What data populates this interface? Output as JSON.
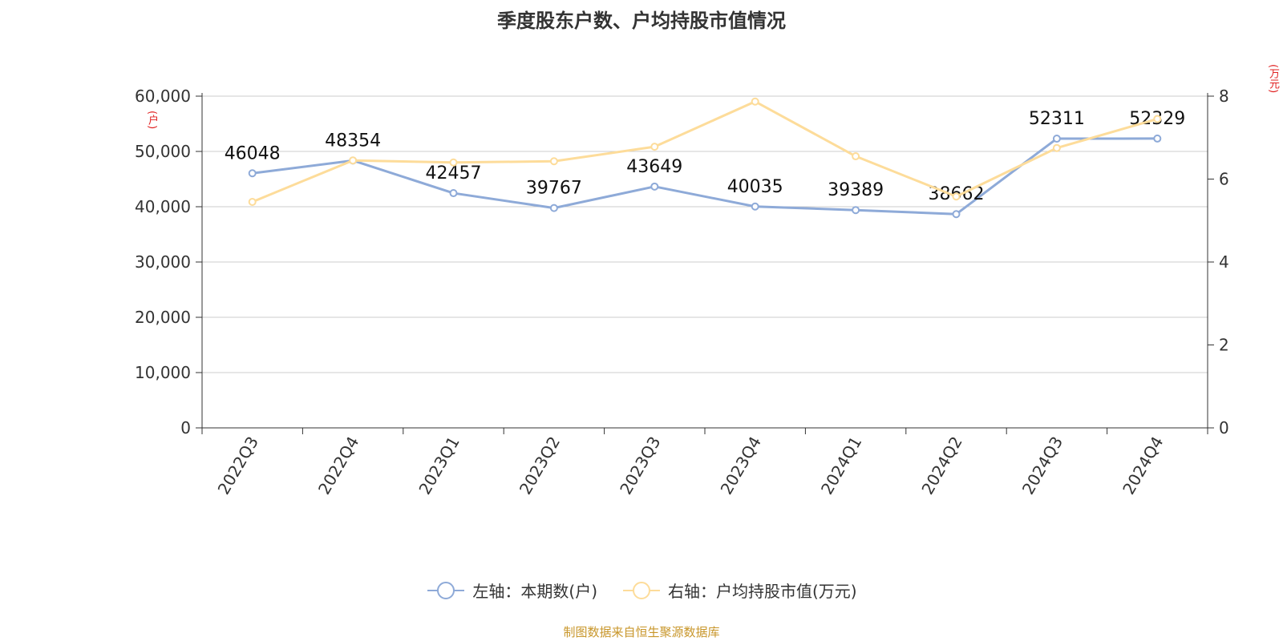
{
  "title": "季度股东户数、户均持股市值情况",
  "source": "制图数据来自恒生聚源数据库",
  "colors": {
    "left_series": "#8eaad8",
    "right_series": "#fddc9a",
    "unit": "#e02020",
    "source": "#c8962a"
  },
  "chart_data": {
    "type": "line",
    "title": "季度股东户数、户均持股市值情况",
    "categories": [
      "2022Q3",
      "2022Q4",
      "2023Q1",
      "2023Q2",
      "2023Q3",
      "2023Q4",
      "2024Q1",
      "2024Q2",
      "2024Q3",
      "2024Q4"
    ],
    "left_axis": {
      "unit": "(户)",
      "ylim": [
        0,
        60000
      ],
      "ticks": [
        "0",
        "10,000",
        "20,000",
        "30,000",
        "40,000",
        "50,000",
        "60,000"
      ]
    },
    "right_axis": {
      "unit": "(万元)",
      "ylim": [
        0,
        8
      ],
      "ticks": [
        "0",
        "2",
        "4",
        "6",
        "8"
      ]
    },
    "series": [
      {
        "name": "左轴：本期数(户)",
        "axis": "left",
        "color": "#8eaad8",
        "values": [
          46048,
          48354,
          42457,
          39767,
          43649,
          40035,
          39389,
          38662,
          52311,
          52329
        ],
        "labels": [
          "46048",
          "48354",
          "42457",
          "39767",
          "43649",
          "40035",
          "39389",
          "38662",
          "52311",
          "52329"
        ]
      },
      {
        "name": "右轴：户均持股市值(万元)",
        "axis": "right",
        "color": "#fddc9a",
        "values": [
          5.45,
          6.45,
          6.4,
          6.43,
          6.78,
          7.87,
          6.55,
          5.58,
          6.75,
          7.45
        ]
      }
    ],
    "grid": true,
    "legend": "bottom"
  }
}
